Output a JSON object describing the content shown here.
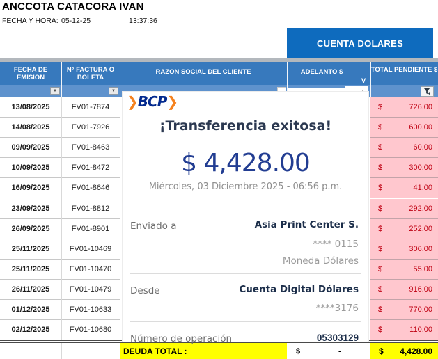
{
  "header": {
    "title": "ANCCOTA CATACORA IVAN",
    "fecha_hora_label": "FECHA Y HORA:",
    "fecha": "05-12-25",
    "hora": "13:37:36"
  },
  "account_banner": "CUENTA DOLARES",
  "table": {
    "columns": [
      "FECHA DE EMISION",
      "N° FACTURA O BOLETA",
      "RAZON SOCIAL DEL CLIENTE",
      "ADELANTO $",
      "V",
      "TOTAL PENDIENTE $"
    ],
    "rows": [
      {
        "fecha": "13/08/2025",
        "factura": "FV01-7874",
        "moneda": "$",
        "pendiente": "726.00"
      },
      {
        "fecha": "14/08/2025",
        "factura": "FV01-7926",
        "moneda": "$",
        "pendiente": "600.00"
      },
      {
        "fecha": "09/09/2025",
        "factura": "FV01-8463",
        "moneda": "$",
        "pendiente": "60.00"
      },
      {
        "fecha": "10/09/2025",
        "factura": "FV01-8472",
        "moneda": "$",
        "pendiente": "300.00"
      },
      {
        "fecha": "16/09/2025",
        "factura": "FV01-8646",
        "moneda": "$",
        "pendiente": "41.00"
      },
      {
        "fecha": "23/09/2025",
        "factura": "FV01-8812",
        "moneda": "$",
        "pendiente": "292.00"
      },
      {
        "fecha": "26/09/2025",
        "factura": "FV01-8901",
        "moneda": "$",
        "pendiente": "252.00"
      },
      {
        "fecha": "25/11/2025",
        "factura": "FV01-10469",
        "moneda": "$",
        "pendiente": "306.00"
      },
      {
        "fecha": "25/11/2025",
        "factura": "FV01-10470",
        "moneda": "$",
        "pendiente": "55.00"
      },
      {
        "fecha": "26/11/2025",
        "factura": "FV01-10479",
        "moneda": "$",
        "pendiente": "916.00"
      },
      {
        "fecha": "01/12/2025",
        "factura": "FV01-10633",
        "moneda": "$",
        "pendiente": "770.00"
      },
      {
        "fecha": "02/12/2025",
        "factura": "FV01-10680",
        "moneda": "$",
        "pendiente": "110.00"
      }
    ],
    "footer": {
      "label": "DEUDA TOTAL :",
      "adelanto_currency": "$",
      "adelanto_value": "-",
      "total_currency": "$",
      "total_value": "4,428.00"
    }
  },
  "receipt": {
    "logo_chevron": "❯",
    "logo_word": "BCP",
    "title": "¡Transferencia exitosa!",
    "amount": "$ 4,428.00",
    "datetime": "Miércoles, 03 Diciembre 2025 - 06:56 p.m.",
    "sent_label": "Enviado a",
    "sent_name": "Asia Print Center S.",
    "sent_account": "**** 0115",
    "sent_currency": "Moneda Dólares",
    "from_label": "Desde",
    "from_name": "Cuenta Digital Dólares",
    "from_account": "****3176",
    "operation_label": "Número de operación",
    "operation_number": "05303129"
  },
  "icons": {
    "filter_dropdown": "▼",
    "filter_funnel": "funnel-icon"
  },
  "colors": {
    "banner_blue": "#0e6bbe",
    "header_blue": "#3779bd",
    "filter_strip_blue": "#5e92cd",
    "pending_bg": "#ffc7ce",
    "pending_text": "#bf0012",
    "total_highlight": "#ffff00",
    "bcp_orange": "#f5821f",
    "bcp_navy": "#032a8e",
    "amount_blue": "#223d92"
  }
}
